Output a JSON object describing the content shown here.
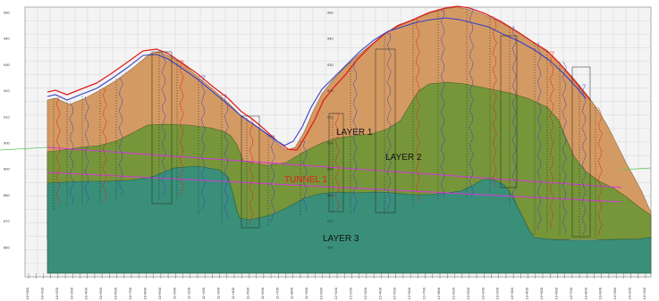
{
  "labels": {
    "layer1": "LAYER 1",
    "layer2": "LAYER 2",
    "layer3": "LAYER 3",
    "tunnel": "TUNNEL 1"
  },
  "colors": {
    "layer1": "#d49a63",
    "layer2": "#77963a",
    "layer3": "#3a8f78",
    "ground_red": "#e0201e",
    "ground_blue": "#3b3fc7",
    "tunnel_magenta": "#d13bd6",
    "grid": "#c8c8c8"
  },
  "elevation_ticks": [
    "950",
    "940",
    "930",
    "920",
    "910",
    "900",
    "890",
    "880",
    "870",
    "860"
  ],
  "station_ticks": [
    "10+000",
    "10+050",
    "10+100",
    "10+150",
    "10+200",
    "10+250",
    "10+300",
    "10+350",
    "10+400",
    "10+450",
    "10+500",
    "10+550",
    "10+600",
    "10+650",
    "10+700",
    "10+750",
    "10+800",
    "10+850",
    "10+900",
    "10+950",
    "11+000",
    "11+050",
    "11+100",
    "11+150",
    "11+200",
    "11+250",
    "11+300",
    "11+350",
    "11+400",
    "11+450",
    "11+500",
    "11+550",
    "11+600",
    "11+650",
    "11+700",
    "11+750",
    "11+800",
    "11+850",
    "11+900",
    "11+950",
    "12+000",
    "12+050",
    "12+100",
    "12+150",
    "12+200",
    "12+250",
    "12+300",
    "12+350",
    "12+400",
    "12+450",
    "12+500",
    "12+550",
    "12+600",
    "12+650",
    "12+700",
    "12+750",
    "12+800",
    "12+850",
    "12+900",
    "12+950",
    "13+000",
    "13+050",
    "13+100",
    "13+150",
    "13+200",
    "13+250",
    "13+300",
    "13+350",
    "13+400",
    "13+450",
    "13+500",
    "13+550",
    "13+600",
    "13+650",
    "13+700",
    "13+750",
    "13+800",
    "13+850",
    "13+900",
    "13+950",
    "14+000",
    "14+050",
    "14+100",
    "14+150",
    "14+200"
  ]
}
